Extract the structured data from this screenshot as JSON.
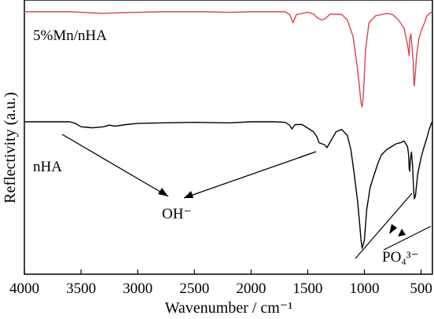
{
  "chart_data": {
    "type": "line",
    "xlabel": "Wavenumber / cm⁻¹",
    "ylabel": "Reflectivity (a.u.)",
    "xlim": [
      4000,
      400
    ],
    "x_reversed": true,
    "yticks_shown": false,
    "grid": false,
    "xticks": [
      4000,
      3500,
      3000,
      2500,
      2000,
      1500,
      1000,
      500
    ],
    "series": [
      {
        "name": "5%Mn/nHA",
        "color": "#d9434f",
        "x": [
          4000,
          3800,
          3600,
          3500,
          3400,
          3300,
          3200,
          3000,
          2800,
          2600,
          2400,
          2200,
          2000,
          1800,
          1700,
          1660,
          1630,
          1600,
          1500,
          1450,
          1420,
          1380,
          1350,
          1300,
          1200,
          1150,
          1100,
          1060,
          1030,
          1020,
          1010,
          990,
          960,
          900,
          850,
          800,
          750,
          700,
          650,
          620,
          605,
          600,
          590,
          580,
          570,
          565,
          560,
          550,
          540,
          520,
          500,
          470,
          450,
          420,
          400
        ],
        "y": [
          0.0,
          0.0,
          0.0,
          0.1,
          0.2,
          0.3,
          0.2,
          0.1,
          0.0,
          0.0,
          0.0,
          0.1,
          0.0,
          0.0,
          0.0,
          0.5,
          2.0,
          0.5,
          0.1,
          0.4,
          1.0,
          1.5,
          1.3,
          0.4,
          0.5,
          1.5,
          4.5,
          10.5,
          16.5,
          17.3,
          15.5,
          7.0,
          2.0,
          0.7,
          0.5,
          0.3,
          0.5,
          1.5,
          3.0,
          6.0,
          8.0,
          5.0,
          4.0,
          6.5,
          9.0,
          12.0,
          13.5,
          11.0,
          8.0,
          5.0,
          3.5,
          2.0,
          0.8,
          0.2,
          0.0
        ]
      },
      {
        "name": "nHA",
        "color": "#000000",
        "x": [
          4000,
          3800,
          3700,
          3600,
          3550,
          3500,
          3450,
          3400,
          3300,
          3250,
          3200,
          3100,
          3000,
          2800,
          2500,
          2200,
          2000,
          1800,
          1700,
          1660,
          1640,
          1610,
          1550,
          1450,
          1420,
          1400,
          1350,
          1330,
          1300,
          1250,
          1200,
          1150,
          1120,
          1090,
          1060,
          1040,
          1030,
          1020,
          1000,
          980,
          950,
          920,
          880,
          850,
          800,
          760,
          720,
          680,
          650,
          620,
          610,
          605,
          600,
          595,
          585,
          575,
          570,
          565,
          560,
          550,
          530,
          500,
          480,
          450,
          430,
          410,
          400
        ],
        "y": [
          0.0,
          0.0,
          0.0,
          0.0,
          0.3,
          0.9,
          1.0,
          1.1,
          0.9,
          0.6,
          0.8,
          0.5,
          0.3,
          0.2,
          0.1,
          0.2,
          0.0,
          0.0,
          0.1,
          0.6,
          1.3,
          0.5,
          0.5,
          1.8,
          2.7,
          3.8,
          4.2,
          4.7,
          3.6,
          1.8,
          1.4,
          2.5,
          5.0,
          9.5,
          14.5,
          19.0,
          21.5,
          23.0,
          21.5,
          16.0,
          12.0,
          10.0,
          7.5,
          6.0,
          5.0,
          4.5,
          4.0,
          3.8,
          3.5,
          4.5,
          6.0,
          8.5,
          9.0,
          7.0,
          5.5,
          8.0,
          10.5,
          12.5,
          14.0,
          13.5,
          9.5,
          6.5,
          5.0,
          3.0,
          1.5,
          0.3,
          0.0
        ]
      }
    ],
    "annotations": [
      {
        "text": "OH⁻",
        "points_to_x": [
          3450,
          1430
        ]
      },
      {
        "text": "PO₄³⁻",
        "points_to_x": [
          600,
          565
        ]
      }
    ]
  }
}
